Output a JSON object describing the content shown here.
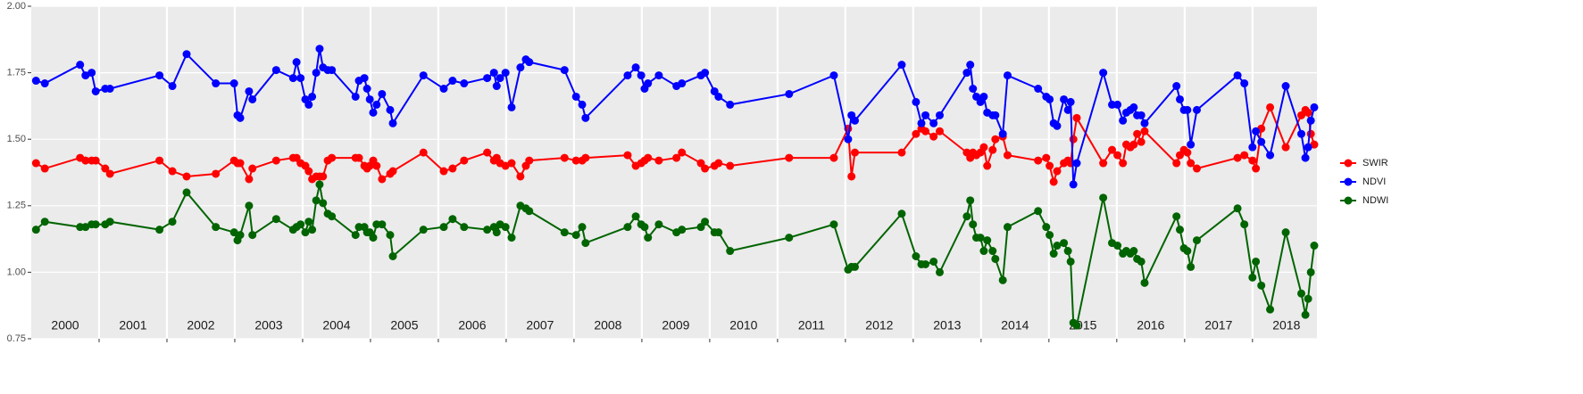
{
  "chart_data": {
    "type": "line",
    "ylim": [
      0.75,
      2
    ],
    "yticks": [
      0.75,
      {
        "value": 1,
        "label": "1.00"
      },
      1.25,
      {
        "value": 1.5,
        "label": "1.50"
      },
      1.75,
      {
        "value": 2,
        "label": "2.00"
      }
    ],
    "xlim": [
      2000,
      2018.95
    ],
    "year_breaks": [
      2001,
      2002,
      2003,
      2004,
      2005,
      2006,
      2007,
      2008,
      2009,
      2010,
      2011,
      2012,
      2013,
      2014,
      2015,
      2016,
      2017,
      2018
    ],
    "year_labels": [
      {
        "value": 2000.5,
        "label": "2000"
      },
      {
        "value": 2001.5,
        "label": "2001"
      },
      {
        "value": 2002.5,
        "label": "2002"
      },
      {
        "value": 2003.5,
        "label": "2003"
      },
      {
        "value": 2004.5,
        "label": "2004"
      },
      {
        "value": 2005.5,
        "label": "2005"
      },
      {
        "value": 2006.5,
        "label": "2006"
      },
      {
        "value": 2007.5,
        "label": "2007"
      },
      {
        "value": 2008.5,
        "label": "2008"
      },
      {
        "value": 2009.5,
        "label": "2009"
      },
      {
        "value": 2010.5,
        "label": "2010"
      },
      {
        "value": 2011.5,
        "label": "2011"
      },
      {
        "value": 2012.5,
        "label": "2012"
      },
      {
        "value": 2013.5,
        "label": "2013"
      },
      {
        "value": 2014.5,
        "label": "2014"
      },
      {
        "value": 2015.5,
        "label": "2015"
      },
      {
        "value": 2016.5,
        "label": "2016"
      },
      {
        "value": 2017.5,
        "label": "2017"
      },
      {
        "value": 2018.5,
        "label": "2018"
      }
    ],
    "grid": true,
    "legend": "right",
    "x": [
      2000.07,
      2000.2,
      2000.72,
      2000.8,
      2000.89,
      2000.95,
      2001.09,
      2001.16,
      2001.89,
      2002.08,
      2002.29,
      2002.72,
      2002.99,
      2003.04,
      2003.08,
      2003.21,
      2003.26,
      2003.61,
      2003.86,
      2003.91,
      2003.97,
      2004.04,
      2004.09,
      2004.14,
      2004.2,
      2004.25,
      2004.3,
      2004.37,
      2004.43,
      2004.78,
      2004.83,
      2004.91,
      2004.95,
      2004.99,
      2005.04,
      2005.09,
      2005.17,
      2005.29,
      2005.33,
      2005.78,
      2006.08,
      2006.21,
      2006.38,
      2006.72,
      2006.82,
      2006.86,
      2006.91,
      2006.99,
      2007.08,
      2007.21,
      2007.29,
      2007.34,
      2007.86,
      2008.03,
      2008.12,
      2008.17,
      2008.79,
      2008.91,
      2008.99,
      2009.04,
      2009.09,
      2009.25,
      2009.51,
      2009.59,
      2009.87,
      2009.93,
      2010.07,
      2010.13,
      2010.3,
      2011.17,
      2011.83,
      2012.04,
      2012.09,
      2012.14,
      2012.83,
      2013.04,
      2013.12,
      2013.18,
      2013.3,
      2013.39,
      2013.79,
      2013.84,
      2013.88,
      2013.93,
      2013.99,
      2014.04,
      2014.09,
      2014.17,
      2014.21,
      2014.32,
      2014.39,
      2014.84,
      2014.96,
      2015.01,
      2015.07,
      2015.12,
      2015.22,
      2015.28,
      2015.32,
      2015.36,
      2015.41,
      2015.8,
      2015.93,
      2016.01,
      2016.09,
      2016.14,
      2016.2,
      2016.25,
      2016.3,
      2016.36,
      2016.41,
      2016.88,
      2016.93,
      2016.99,
      2017.04,
      2017.09,
      2017.18,
      2017.78,
      2017.88,
      2018.0,
      2018.05,
      2018.13,
      2018.26,
      2018.49,
      2018.72,
      2018.78,
      2018.82,
      2018.86,
      2018.91
    ],
    "series": [
      {
        "name": "SWIR",
        "color": "#ff0000",
        "values": [
          1.41,
          1.39,
          1.43,
          1.42,
          1.42,
          1.42,
          1.39,
          1.37,
          1.42,
          1.38,
          1.36,
          1.37,
          1.42,
          1.41,
          1.41,
          1.35,
          1.39,
          1.42,
          1.43,
          1.43,
          1.41,
          1.4,
          1.38,
          1.35,
          1.36,
          1.36,
          1.36,
          1.42,
          1.43,
          1.43,
          1.43,
          1.4,
          1.39,
          1.4,
          1.42,
          1.4,
          1.35,
          1.37,
          1.38,
          1.45,
          1.38,
          1.39,
          1.42,
          1.45,
          1.42,
          1.43,
          1.41,
          1.4,
          1.41,
          1.36,
          1.4,
          1.42,
          1.43,
          1.42,
          1.42,
          1.43,
          1.44,
          1.4,
          1.41,
          1.42,
          1.43,
          1.42,
          1.43,
          1.45,
          1.41,
          1.39,
          1.4,
          1.41,
          1.4,
          1.43,
          1.43,
          1.54,
          1.36,
          1.45,
          1.45,
          1.52,
          1.54,
          1.53,
          1.51,
          1.53,
          1.45,
          1.43,
          1.45,
          1.44,
          1.45,
          1.47,
          1.4,
          1.46,
          1.5,
          1.51,
          1.44,
          1.42,
          1.43,
          1.4,
          1.34,
          1.38,
          1.41,
          1.42,
          1.41,
          1.5,
          1.58,
          1.41,
          1.46,
          1.44,
          1.41,
          1.48,
          1.47,
          1.48,
          1.52,
          1.49,
          1.53,
          1.41,
          1.44,
          1.46,
          1.45,
          1.41,
          1.39,
          1.43,
          1.44,
          1.42,
          1.39,
          1.54,
          1.62,
          1.47,
          1.59,
          1.61,
          1.6,
          1.52,
          1.48
        ]
      },
      {
        "name": "NDVI",
        "color": "#0000ff",
        "values": [
          1.72,
          1.71,
          1.78,
          1.74,
          1.75,
          1.68,
          1.69,
          1.69,
          1.74,
          1.7,
          1.82,
          1.71,
          1.71,
          1.59,
          1.58,
          1.68,
          1.65,
          1.76,
          1.73,
          1.79,
          1.73,
          1.65,
          1.63,
          1.66,
          1.75,
          1.84,
          1.77,
          1.76,
          1.76,
          1.66,
          1.72,
          1.73,
          1.69,
          1.65,
          1.6,
          1.63,
          1.67,
          1.61,
          1.56,
          1.74,
          1.69,
          1.72,
          1.71,
          1.73,
          1.75,
          1.7,
          1.73,
          1.75,
          1.62,
          1.77,
          1.8,
          1.79,
          1.76,
          1.66,
          1.63,
          1.58,
          1.74,
          1.77,
          1.74,
          1.69,
          1.71,
          1.74,
          1.7,
          1.71,
          1.74,
          1.75,
          1.68,
          1.66,
          1.63,
          1.67,
          1.74,
          1.5,
          1.59,
          1.57,
          1.78,
          1.64,
          1.56,
          1.59,
          1.56,
          1.59,
          1.75,
          1.78,
          1.69,
          1.66,
          1.64,
          1.66,
          1.6,
          1.59,
          1.59,
          1.52,
          1.74,
          1.69,
          1.66,
          1.65,
          1.56,
          1.55,
          1.65,
          1.61,
          1.64,
          1.33,
          1.41,
          1.75,
          1.63,
          1.63,
          1.57,
          1.6,
          1.61,
          1.62,
          1.59,
          1.59,
          1.56,
          1.7,
          1.65,
          1.61,
          1.61,
          1.48,
          1.61,
          1.74,
          1.71,
          1.47,
          1.53,
          1.49,
          1.44,
          1.7,
          1.52,
          1.43,
          1.47,
          1.57,
          1.62
        ]
      },
      {
        "name": "NDWI",
        "color": "#006400",
        "values": [
          1.16,
          1.19,
          1.17,
          1.17,
          1.18,
          1.18,
          1.18,
          1.19,
          1.16,
          1.19,
          1.3,
          1.17,
          1.15,
          1.12,
          1.14,
          1.25,
          1.14,
          1.2,
          1.16,
          1.17,
          1.18,
          1.15,
          1.19,
          1.16,
          1.27,
          1.33,
          1.26,
          1.22,
          1.21,
          1.14,
          1.17,
          1.17,
          1.15,
          1.15,
          1.13,
          1.18,
          1.18,
          1.14,
          1.06,
          1.16,
          1.17,
          1.2,
          1.17,
          1.16,
          1.17,
          1.15,
          1.18,
          1.17,
          1.13,
          1.25,
          1.24,
          1.23,
          1.15,
          1.14,
          1.17,
          1.11,
          1.17,
          1.21,
          1.18,
          1.17,
          1.13,
          1.18,
          1.15,
          1.16,
          1.17,
          1.19,
          1.15,
          1.15,
          1.08,
          1.13,
          1.18,
          1.01,
          1.02,
          1.02,
          1.22,
          1.06,
          1.03,
          1.03,
          1.04,
          1.0,
          1.21,
          1.27,
          1.18,
          1.13,
          1.13,
          1.08,
          1.12,
          1.08,
          1.05,
          0.97,
          1.17,
          1.23,
          1.17,
          1.14,
          1.07,
          1.1,
          1.11,
          1.08,
          1.04,
          0.81,
          0.8,
          1.28,
          1.11,
          1.1,
          1.07,
          1.08,
          1.07,
          1.08,
          1.05,
          1.04,
          0.96,
          1.21,
          1.16,
          1.09,
          1.08,
          1.02,
          1.12,
          1.24,
          1.18,
          0.98,
          1.04,
          0.95,
          0.86,
          1.15,
          0.92,
          0.84,
          0.9,
          1.0,
          1.1
        ]
      }
    ]
  }
}
